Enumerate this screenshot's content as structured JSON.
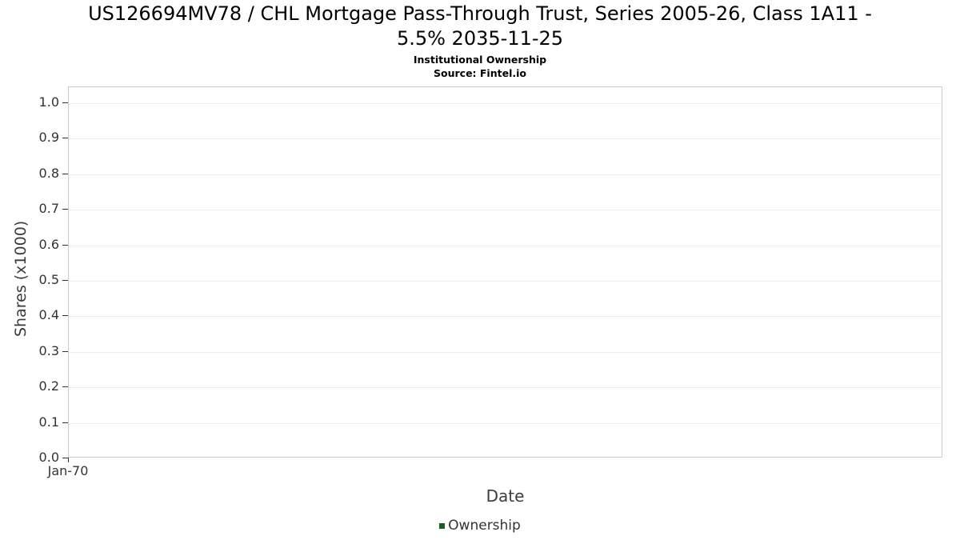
{
  "title": {
    "line1": "US126694MV78 / CHL Mortgage Pass-Through Trust, Series 2005-26, Class 1A11 -",
    "line2": "5.5% 2035-11-25"
  },
  "subtitle": "Institutional Ownership",
  "source": "Source: Fintel.io",
  "chart_data": {
    "type": "line",
    "title": "US126694MV78 / CHL Mortgage Pass-Through Trust, Series 2005-26, Class 1A11 - 5.5% 2035-11-25",
    "subtitle": "Institutional Ownership",
    "source": "Source: Fintel.io",
    "xlabel": "Date",
    "ylabel": "Shares (x1000)",
    "x_ticks": [
      "Jan-70"
    ],
    "y_ticks": [
      0.0,
      0.1,
      0.2,
      0.3,
      0.4,
      0.5,
      0.6,
      0.7,
      0.8,
      0.9,
      1.0
    ],
    "ylim": [
      0.0,
      1.045
    ],
    "grid": true,
    "legend_position": "bottom",
    "series": [
      {
        "name": "Ownership",
        "color": "#1a5e2a",
        "x": [],
        "values": []
      }
    ]
  }
}
